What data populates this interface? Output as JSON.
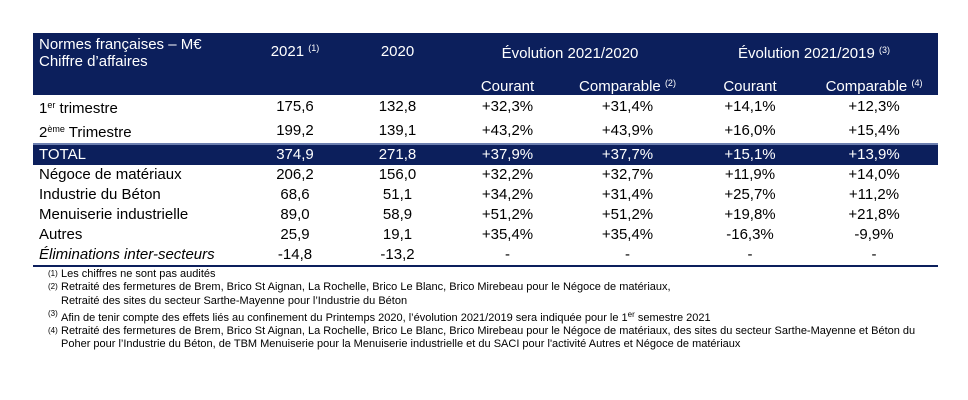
{
  "header": {
    "title_line1": "Normes françaises – M€",
    "title_line2": "Chiffre d’affaires",
    "col_2021": "2021",
    "col_2021_note": "(1)",
    "col_2020": "2020",
    "evol_2020": "Évolution 2021/2020",
    "evol_2019": "Évolution 2021/2019",
    "evol_2019_note": "(3)",
    "courant": "Courant",
    "comparable": "Comparable",
    "comparable_2020_note": "(2)",
    "comparable_2019_note": "(4)"
  },
  "rows": [
    {
      "label": "1",
      "label_sup": "er",
      "label_rest": " trimestre",
      "v2021": "175,6",
      "v2020": "132,8",
      "c20": "+32,3%",
      "cp20": "+31,4%",
      "c19": "+14,1%",
      "cp19": "+12,3%"
    },
    {
      "label": "2",
      "label_sup": "ème",
      "label_rest": " Trimestre",
      "v2021": "199,2",
      "v2020": "139,1",
      "c20": "+43,2%",
      "cp20": "+43,9%",
      "c19": "+16,0%",
      "cp19": "+15,4%"
    },
    {
      "label": "TOTAL",
      "v2021": "374,9",
      "v2020": "271,8",
      "c20": "+37,9%",
      "cp20": "+37,7%",
      "c19": "+15,1%",
      "cp19": "+13,9%"
    },
    {
      "label": "Négoce de matériaux",
      "v2021": "206,2",
      "v2020": "156,0",
      "c20": "+32,2%",
      "cp20": "+32,7%",
      "c19": "+11,9%",
      "cp19": "+14,0%"
    },
    {
      "label": "Industrie du Béton",
      "v2021": "68,6",
      "v2020": "51,1",
      "c20": "+34,2%",
      "cp20": "+31,4%",
      "c19": "+25,7%",
      "cp19": "+11,2%"
    },
    {
      "label": "Menuiserie industrielle",
      "v2021": "89,0",
      "v2020": "58,9",
      "c20": "+51,2%",
      "cp20": "+51,2%",
      "c19": "+19,8%",
      "cp19": "+21,8%"
    },
    {
      "label": "Autres",
      "v2021": "25,9",
      "v2020": "19,1",
      "c20": "+35,4%",
      "cp20": "+35,4%",
      "c19": "-16,3%",
      "cp19": "-9,9%"
    },
    {
      "label": "Éliminations inter-secteurs",
      "v2021": "-14,8",
      "v2020": "-13,2",
      "c20": "-",
      "cp20": "-",
      "c19": "-",
      "cp19": "-"
    }
  ],
  "notes": [
    {
      "mark": "(1)",
      "text": "Les chiffres ne sont pas audités"
    },
    {
      "mark": "(2)",
      "text": "Retraité des fermetures de Brem, Brico St Aignan, La Rochelle, Brico Le Blanc, Brico Mirebeau pour le Négoce de matériaux,",
      "text2": "Retraité des sites du secteur Sarthe-Mayenne pour l’Industrie du Béton"
    },
    {
      "mark": "(3)",
      "text": "Afin de tenir compte des effets liés au confinement du Printemps 2020, l’évolution 2021/2019 sera indiquée pour le 1",
      "sup": "er",
      "text_end": " semestre 2021"
    },
    {
      "mark": "(4)",
      "text": "Retraité des fermetures de Brem, Brico St Aignan, La Rochelle, Brico Le Blanc, Brico Mirebeau pour le Négoce de matériaux, des sites du secteur Sarthe-Mayenne et Béton du Poher pour l’Industrie du Béton, de TBM Menuiserie pour la Menuiserie industrielle et du SACI pour l'activité Autres et Négoce de matériaux"
    }
  ]
}
